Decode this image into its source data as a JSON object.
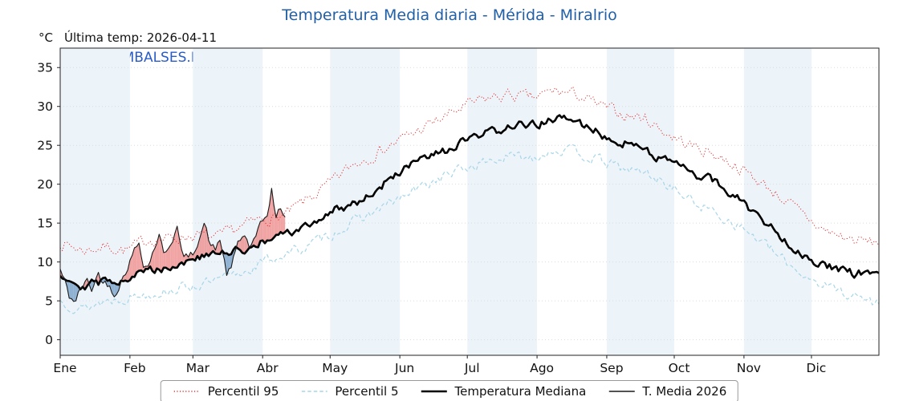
{
  "header": {
    "title": "Temperatura Media diaria - Mérida - Miralrio",
    "title_color": "#2160a8",
    "y_unit": "°C",
    "last_temp": "Última temp: 2026-04-11",
    "watermark": "WWW.EMBALSES.NET",
    "watermark_color": "#2a5cc8"
  },
  "chart_data": {
    "type": "line",
    "x_unit": "day_of_year",
    "ylim": [
      -2,
      37.5
    ],
    "yticks": [
      0,
      5,
      10,
      15,
      20,
      25,
      30,
      35
    ],
    "months": {
      "labels": [
        "Ene",
        "Feb",
        "Mar",
        "Abr",
        "May",
        "Jun",
        "Jul",
        "Ago",
        "Sep",
        "Oct",
        "Nov",
        "Dic"
      ],
      "start_days": [
        1,
        32,
        60,
        91,
        121,
        152,
        182,
        213,
        244,
        274,
        305,
        335
      ],
      "days_total": 365
    },
    "band_fill": "#ecf3f9",
    "grid_color": "#d8dde2",
    "axis_color": "#222222",
    "series": [
      {
        "name": "Percentil 95",
        "color": "#e03131",
        "dash": "dotted",
        "width": 1,
        "seed": 7,
        "noise": 0.7,
        "anchors": {
          "x": [
            1,
            11,
            21,
            31,
            41,
            51,
            61,
            71,
            81,
            91,
            101,
            111,
            121,
            131,
            141,
            151,
            161,
            171,
            181,
            191,
            201,
            211,
            221,
            231,
            241,
            251,
            261,
            271,
            281,
            291,
            301,
            311,
            321,
            331,
            341,
            351,
            361,
            365
          ],
          "y": [
            12.5,
            11.5,
            12,
            11.5,
            13,
            13,
            13.5,
            13,
            14.5,
            15.5,
            16,
            18,
            20,
            22.5,
            24,
            25.5,
            27,
            28.5,
            30,
            31,
            31.5,
            31,
            32,
            31.5,
            30,
            29,
            28.5,
            26.5,
            25,
            24,
            22.5,
            20.5,
            18.5,
            16,
            14,
            13,
            12.5,
            12.5
          ]
        }
      },
      {
        "name": "Percentil 5",
        "color": "#a8d6e8",
        "dash": "dashed",
        "width": 1.2,
        "seed": 13,
        "noise": 0.6,
        "anchors": {
          "x": [
            1,
            11,
            21,
            31,
            41,
            51,
            61,
            71,
            81,
            91,
            101,
            111,
            121,
            131,
            141,
            151,
            161,
            171,
            181,
            191,
            201,
            211,
            221,
            231,
            241,
            251,
            261,
            271,
            281,
            291,
            301,
            311,
            321,
            331,
            341,
            351,
            361,
            365
          ],
          "y": [
            5,
            4,
            5,
            5.5,
            6,
            6.5,
            7,
            7.5,
            8.5,
            10,
            11,
            12,
            13.5,
            15,
            16.5,
            18,
            19.5,
            21,
            22,
            23,
            23.5,
            23.5,
            24.5,
            24,
            23,
            22,
            21.5,
            20,
            18,
            16.5,
            15,
            13,
            10.5,
            8.5,
            7,
            6,
            5,
            4.5
          ]
        }
      },
      {
        "name": "Temperatura Mediana",
        "color": "#000000",
        "dash": "solid",
        "width": 2.6,
        "seed": 29,
        "noise": 0.5,
        "anchors": {
          "x": [
            1,
            11,
            21,
            31,
            41,
            51,
            61,
            71,
            81,
            91,
            101,
            111,
            121,
            131,
            141,
            151,
            161,
            171,
            181,
            191,
            201,
            211,
            221,
            231,
            241,
            251,
            261,
            271,
            281,
            291,
            301,
            311,
            321,
            331,
            341,
            351,
            361,
            365
          ],
          "y": [
            8.5,
            7,
            7.5,
            8,
            9,
            9.5,
            10.5,
            11,
            11.5,
            12.5,
            13.5,
            14.5,
            16.5,
            17.5,
            19,
            21.5,
            23,
            24,
            25.5,
            26.5,
            27.5,
            27.5,
            28.5,
            28,
            26.5,
            25.5,
            24.5,
            23,
            21.5,
            20.5,
            18.5,
            16,
            13.5,
            11,
            9.5,
            8.5,
            8.5,
            8.5
          ]
        }
      },
      {
        "name": "T. Media 2026",
        "color": "#1a1a1a",
        "dash": "solid",
        "width": 1.1,
        "seed": 42,
        "noise": 0.5,
        "anchors": {
          "x": [
            1,
            3,
            5,
            8,
            10,
            13,
            15,
            18,
            20,
            23,
            25,
            28,
            31,
            34,
            36,
            38,
            40,
            43,
            45,
            47,
            50,
            53,
            55,
            58,
            60,
            63,
            65,
            68,
            70,
            72,
            75,
            77,
            80,
            83,
            85,
            88,
            90,
            93,
            95,
            97,
            99,
            101
          ],
          "y": [
            9,
            7.5,
            5.5,
            5,
            6.5,
            7.5,
            6.5,
            8.5,
            7.5,
            7,
            6,
            7.5,
            9.5,
            11.5,
            12.5,
            10,
            9.5,
            12,
            13.5,
            11,
            12.5,
            14.5,
            11,
            10.5,
            11,
            13.5,
            15,
            12,
            11.5,
            13,
            8.5,
            9,
            12.5,
            13.5,
            12,
            13,
            14.5,
            16,
            19.5,
            15.5,
            17,
            15.5
          ]
        }
      }
    ],
    "fill_between": {
      "upper": "T. Media 2026",
      "base": "Temperatura Mediana",
      "above_color": "#ee9494",
      "below_color": "#7fa6cc",
      "opacity": 0.85
    },
    "legend_position": "bottom-center",
    "grid": true
  }
}
